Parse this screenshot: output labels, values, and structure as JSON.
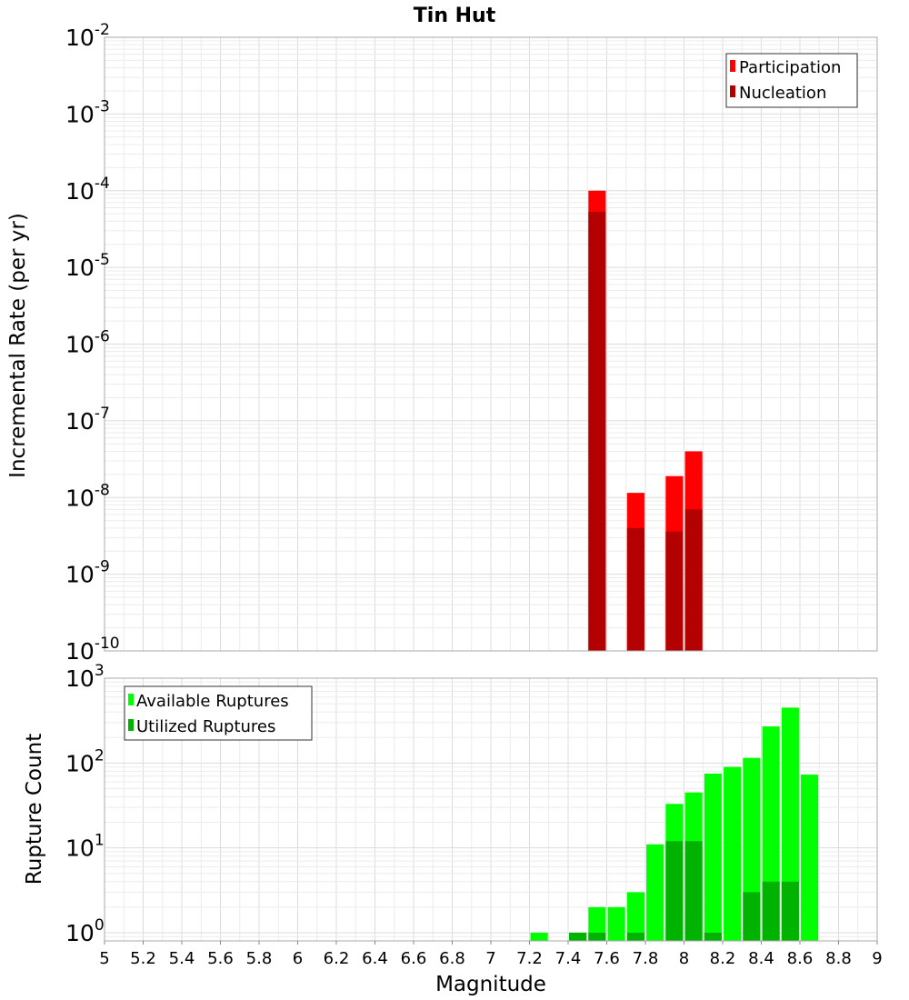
{
  "chart_data": [
    {
      "type": "bar",
      "title": "Tin Hut",
      "ylabel": "Incremental Rate (per yr)",
      "xlabel": "",
      "xlim": [
        5,
        9
      ],
      "ylim": [
        1e-10,
        0.01
      ],
      "yscale": "log",
      "grid": true,
      "bar_width": 0.09,
      "legend": {
        "placement": "top-right"
      },
      "series": [
        {
          "name": "Participation",
          "color": "#ff0000",
          "x": [
            7.55,
            7.75,
            7.95,
            8.05
          ],
          "values": [
            0.0001,
            1.15e-08,
            1.9e-08,
            4e-08
          ]
        },
        {
          "name": "Nucleation",
          "color": "#b30000",
          "x": [
            7.55,
            7.75,
            7.95,
            8.05
          ],
          "values": [
            5.3e-05,
            4e-09,
            3.6e-09,
            7e-09
          ]
        }
      ],
      "y_ticks": [
        {
          "base": "10",
          "exp": "-10"
        },
        {
          "base": "10",
          "exp": "-9"
        },
        {
          "base": "10",
          "exp": "-8"
        },
        {
          "base": "10",
          "exp": "-7"
        },
        {
          "base": "10",
          "exp": "-6"
        },
        {
          "base": "10",
          "exp": "-5"
        },
        {
          "base": "10",
          "exp": "-4"
        },
        {
          "base": "10",
          "exp": "-3"
        },
        {
          "base": "10",
          "exp": "-2"
        }
      ]
    },
    {
      "type": "bar",
      "title": "",
      "ylabel": "Rupture Count",
      "xlabel": "Magnitude",
      "xlim": [
        5,
        9
      ],
      "ylim": [
        0.8,
        1000
      ],
      "yscale": "log",
      "grid": true,
      "bar_width": 0.09,
      "legend": {
        "placement": "top-left"
      },
      "series": [
        {
          "name": "Available Ruptures",
          "color": "#00ff00",
          "x": [
            7.25,
            7.45,
            7.55,
            7.65,
            7.75,
            7.85,
            7.95,
            8.05,
            8.15,
            8.25,
            8.35,
            8.45,
            8.55,
            8.65
          ],
          "values": [
            1,
            1,
            2,
            2,
            3,
            11,
            33,
            45,
            75,
            90,
            115,
            270,
            450,
            73
          ]
        },
        {
          "name": "Utilized Ruptures",
          "color": "#00b300",
          "x": [
            7.45,
            7.55,
            7.75,
            7.95,
            8.05,
            8.15,
            8.35,
            8.45,
            8.55
          ],
          "values": [
            1,
            1,
            1,
            12,
            12,
            1,
            3,
            4,
            4
          ]
        }
      ],
      "x_ticks": [
        "5",
        "5.2",
        "5.4",
        "5.6",
        "5.8",
        "6",
        "6.2",
        "6.4",
        "6.6",
        "6.8",
        "7",
        "7.2",
        "7.4",
        "7.6",
        "7.8",
        "8",
        "8.2",
        "8.4",
        "8.6",
        "8.8",
        "9"
      ],
      "y_ticks": [
        {
          "base": "10",
          "exp": "0"
        },
        {
          "base": "10",
          "exp": "1"
        },
        {
          "base": "10",
          "exp": "2"
        },
        {
          "base": "10",
          "exp": "3"
        }
      ]
    }
  ]
}
